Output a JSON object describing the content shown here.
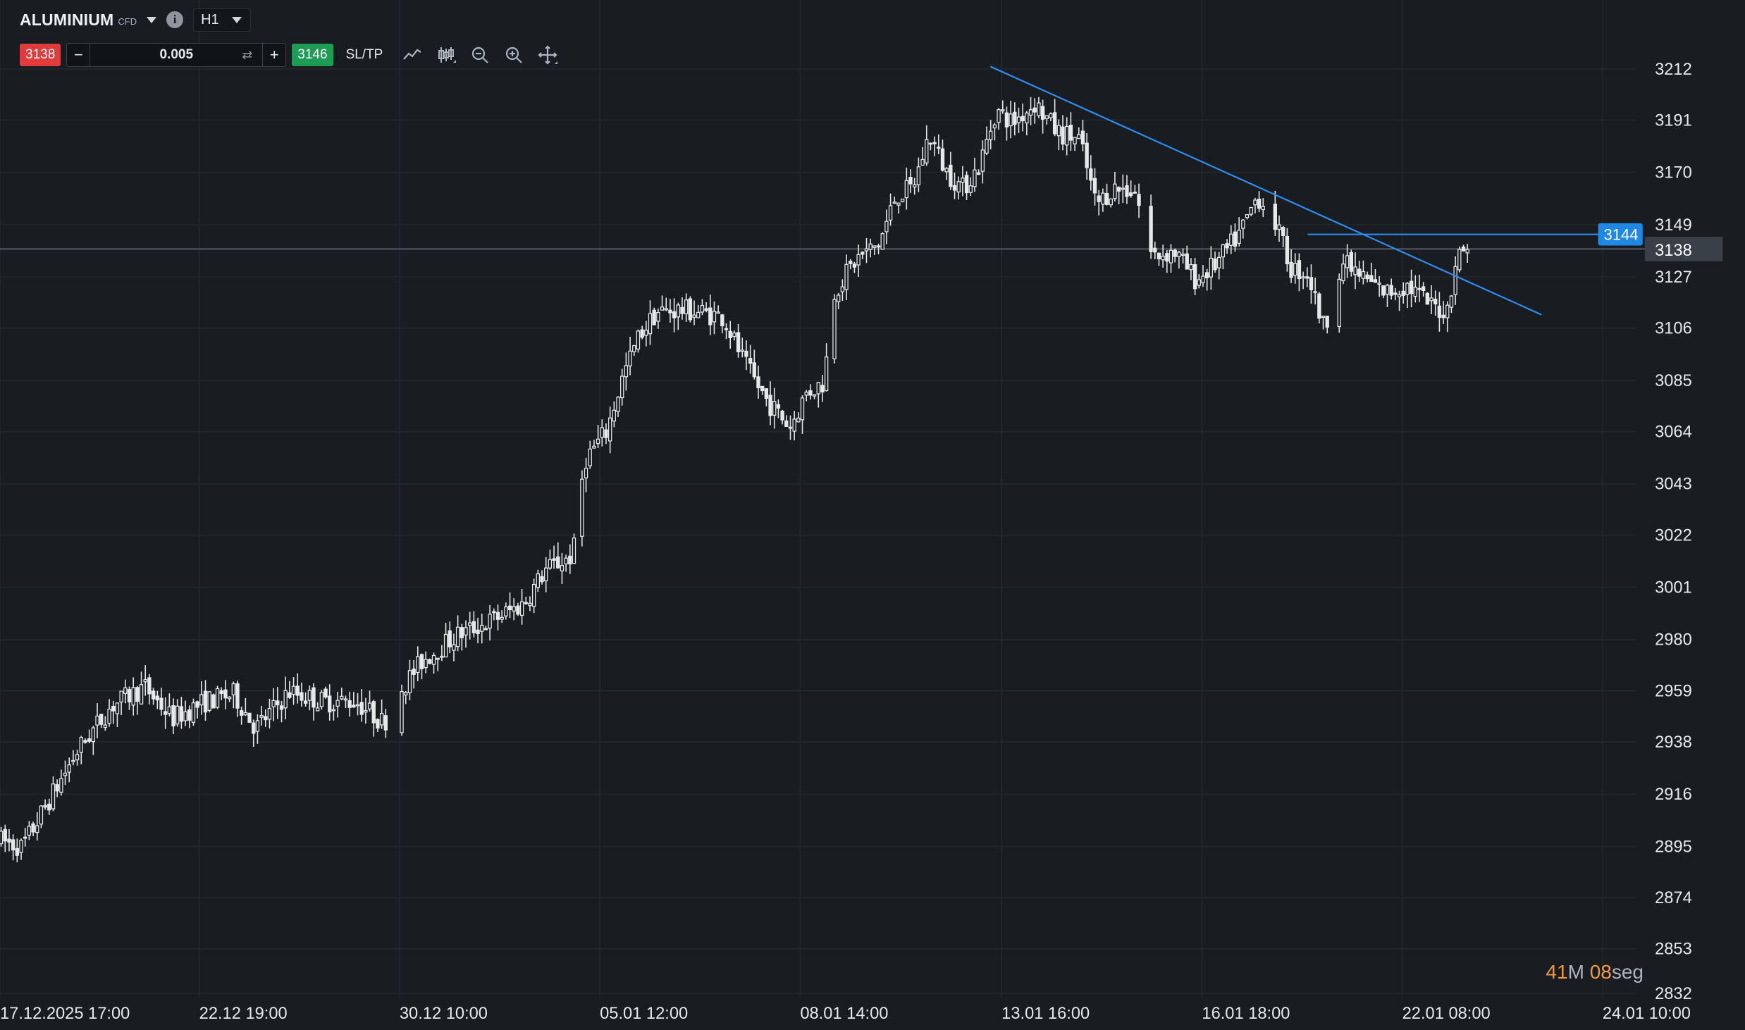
{
  "instrument": {
    "symbol": "ALUMINIUM",
    "type_label": "CFD",
    "timeframe": "H1"
  },
  "trade_bar": {
    "sell_price": "3138",
    "quantity": "0.005",
    "buy_price": "3146",
    "sltp_label": "SL/TP",
    "minus": "−",
    "plus": "+",
    "swap_glyph": "⇄"
  },
  "toolbar_icons": [
    "line-chart-icon",
    "candles-icon",
    "zoom-out-icon",
    "zoom-in-icon",
    "crosshair-icon"
  ],
  "countdown": {
    "minutes": "41",
    "minutes_unit": "M",
    "seconds": "08",
    "seconds_unit": "seg"
  },
  "colors": {
    "background": "#191d21",
    "grid": "#23282d",
    "candle": "#e6e8ea",
    "trendline": "#2d8cf0",
    "price_tag": "#1e88e5",
    "current_price_tag": "#3a4047",
    "sell": "#e23b3b",
    "buy": "#1e9b55",
    "countdown_number": "#f19a3a"
  },
  "chart_data": {
    "type": "candlestick",
    "y_axis_ticks": [
      3212,
      3191,
      3170,
      3149,
      3127,
      3106,
      3085,
      3064,
      3043,
      3022,
      3001,
      2980,
      2959,
      2938,
      2916,
      2895,
      2874,
      2853,
      2832
    ],
    "x_axis_ticks": [
      "17.12.2025 17:00",
      "22.12 19:00",
      "30.12 10:00",
      "05.01 12:00",
      "08.01 14:00",
      "13.01 16:00",
      "16.01 18:00",
      "22.01 08:00",
      "24.01 10:00"
    ],
    "ylim": [
      2832,
      3212
    ],
    "current_price": 3138,
    "horizontal_line_price": 3144,
    "close_path_approx": [
      [
        0,
        2895
      ],
      [
        20,
        2892
      ],
      [
        45,
        2912
      ],
      [
        70,
        2932
      ],
      [
        100,
        2950
      ],
      [
        130,
        2958
      ],
      [
        155,
        2945
      ],
      [
        185,
        2952
      ],
      [
        210,
        2955
      ],
      [
        230,
        2941
      ],
      [
        260,
        2956
      ],
      [
        290,
        2952
      ],
      [
        320,
        2952
      ],
      [
        345,
        2943
      ],
      [
        360,
        2957
      ],
      [
        380,
        2969
      ],
      [
        410,
        2979
      ],
      [
        440,
        2985
      ],
      [
        470,
        2992
      ],
      [
        490,
        3006
      ],
      [
        515,
        3012
      ],
      [
        525,
        3051
      ],
      [
        545,
        3063
      ],
      [
        560,
        3086
      ],
      [
        575,
        3103
      ],
      [
        590,
        3112
      ],
      [
        610,
        3113
      ],
      [
        630,
        3112
      ],
      [
        650,
        3110
      ],
      [
        670,
        3090
      ],
      [
        690,
        3075
      ],
      [
        710,
        3065
      ],
      [
        725,
        3079
      ],
      [
        740,
        3083
      ],
      [
        750,
        3121
      ],
      [
        770,
        3134
      ],
      [
        790,
        3140
      ],
      [
        805,
        3160
      ],
      [
        820,
        3163
      ],
      [
        835,
        3185
      ],
      [
        850,
        3170
      ],
      [
        865,
        3163
      ],
      [
        880,
        3172
      ],
      [
        895,
        3195
      ],
      [
        910,
        3190
      ],
      [
        930,
        3198
      ],
      [
        950,
        3186
      ],
      [
        970,
        3183
      ],
      [
        985,
        3156
      ],
      [
        1000,
        3163
      ],
      [
        1020,
        3162
      ],
      [
        1035,
        3135
      ],
      [
        1055,
        3137
      ],
      [
        1075,
        3125
      ],
      [
        1095,
        3133
      ],
      [
        1115,
        3145
      ],
      [
        1130,
        3160
      ],
      [
        1145,
        3150
      ],
      [
        1160,
        3130
      ],
      [
        1175,
        3128
      ],
      [
        1190,
        3105
      ],
      [
        1205,
        3133
      ],
      [
        1225,
        3126
      ],
      [
        1245,
        3120
      ],
      [
        1265,
        3123
      ],
      [
        1285,
        3115
      ],
      [
        1300,
        3112
      ],
      [
        1308,
        3133
      ],
      [
        1320,
        3141
      ]
    ],
    "drawings": [
      {
        "type": "trendline",
        "from": [
          890,
          3213
        ],
        "to": [
          1385,
          3111
        ]
      },
      {
        "type": "horizontal_ray",
        "from": [
          1175,
          3144
        ],
        "to": [
          1440,
          3144
        ]
      }
    ]
  }
}
